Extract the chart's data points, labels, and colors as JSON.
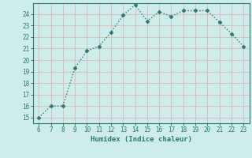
{
  "x": [
    6,
    7,
    8,
    9,
    10,
    11,
    12,
    13,
    14,
    15,
    16,
    17,
    18,
    19,
    20,
    21,
    22,
    23
  ],
  "y": [
    15,
    16,
    16,
    19.3,
    20.8,
    21.2,
    22.4,
    23.9,
    24.8,
    23.4,
    24.2,
    23.8,
    24.3,
    24.3,
    24.3,
    23.3,
    22.3,
    21.2
  ],
  "xlim": [
    5.5,
    23.5
  ],
  "ylim": [
    14.5,
    24.95
  ],
  "yticks": [
    15,
    16,
    17,
    18,
    19,
    20,
    21,
    22,
    23,
    24
  ],
  "xticks": [
    6,
    7,
    8,
    9,
    10,
    11,
    12,
    13,
    14,
    15,
    16,
    17,
    18,
    19,
    20,
    21,
    22,
    23
  ],
  "xlabel": "Humidex (Indice chaleur)",
  "line_color": "#2a7a6f",
  "bg_color": "#ceecea",
  "grid_color_v": "#d8b8b8",
  "grid_color_h": "#d8b8b8",
  "marker_size": 2.5,
  "linewidth": 1.0,
  "tick_fontsize": 5.5,
  "xlabel_fontsize": 6.5
}
